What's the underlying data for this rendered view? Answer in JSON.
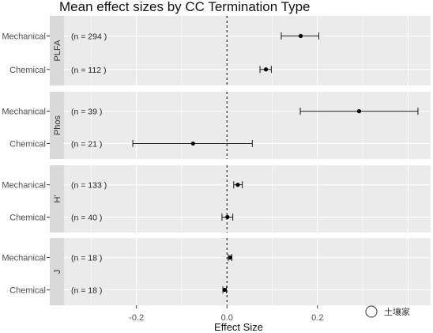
{
  "chart_data": {
    "type": "scatter",
    "title": "Mean effect sizes by CC Termination Type",
    "xlabel": "Effect Size",
    "ylabel": "",
    "xlim": [
      -0.36,
      0.45
    ],
    "x_ticks": [
      -0.2,
      0.0,
      0.2
    ],
    "x_tick_labels": [
      "-0.2",
      "0.0",
      "0.2"
    ],
    "reference_line": 0,
    "grid": true,
    "categories": [
      "Mechanical",
      "Chemical"
    ],
    "panels": [
      {
        "name": "PLFA",
        "rows": [
          {
            "category": "Mechanical",
            "n_label": "(n =  294 )",
            "mean": 0.163,
            "ci_low": 0.12,
            "ci_high": 0.203
          },
          {
            "category": "Chemical",
            "n_label": "(n =  112 )",
            "mean": 0.086,
            "ci_low": 0.073,
            "ci_high": 0.098
          }
        ]
      },
      {
        "name": "Phos",
        "rows": [
          {
            "category": "Mechanical",
            "n_label": "(n =  39 )",
            "mean": 0.292,
            "ci_low": 0.162,
            "ci_high": 0.422
          },
          {
            "category": "Chemical",
            "n_label": "(n =  21 )",
            "mean": -0.075,
            "ci_low": -0.208,
            "ci_high": 0.056
          }
        ]
      },
      {
        "name": "H'",
        "rows": [
          {
            "category": "Mechanical",
            "n_label": "(n =  133 )",
            "mean": 0.024,
            "ci_low": 0.015,
            "ci_high": 0.034
          },
          {
            "category": "Chemical",
            "n_label": "(n =  40 )",
            "mean": 0.001,
            "ci_low": -0.011,
            "ci_high": 0.013
          }
        ]
      },
      {
        "name": "J",
        "rows": [
          {
            "category": "Mechanical",
            "n_label": "(n =  18 )",
            "mean": 0.007,
            "ci_low": 0.003,
            "ci_high": 0.011
          },
          {
            "category": "Chemical",
            "n_label": "(n =  18 )",
            "mean": -0.005,
            "ci_low": -0.009,
            "ci_high": -0.001
          }
        ]
      }
    ]
  },
  "watermark": "土壤家",
  "colors": {
    "panel_bg": "#ebebeb",
    "strip_bg": "#d9d9d9",
    "grid": "#ffffff",
    "ink": "#000000"
  }
}
